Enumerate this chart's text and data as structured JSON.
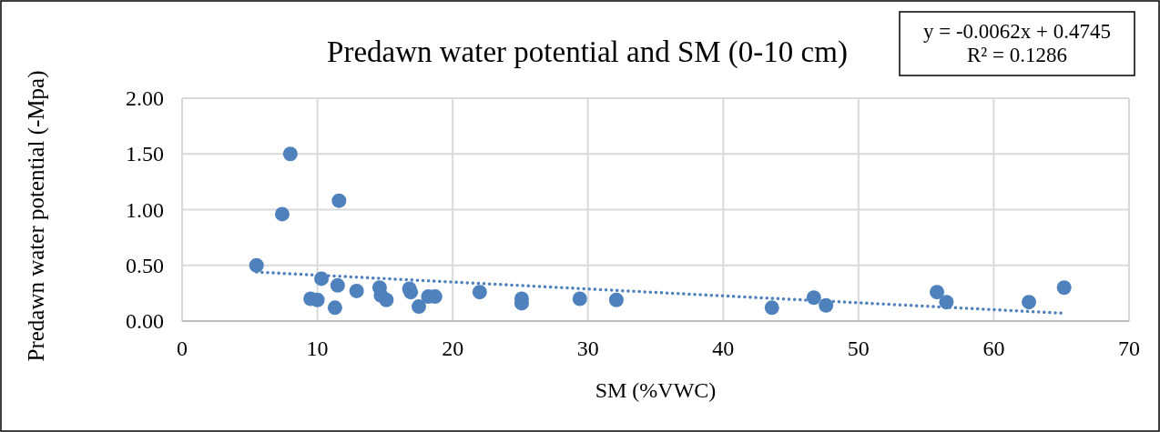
{
  "chart_data": {
    "type": "scatter",
    "title": "Predawn water potential and SM (0-10 cm)",
    "xlabel": "SM (%VWC)",
    "ylabel": "Predawn water potential (-Mpa)",
    "annotations": [
      "y = -0.0062x + 0.4745\nR² = 0.1286"
    ],
    "xlim": [
      0,
      70
    ],
    "xticks": [
      0,
      10,
      20,
      30,
      40,
      50,
      60,
      70
    ],
    "ylim": [
      0,
      2
    ],
    "yticks": [
      {
        "value": 0,
        "label": "0.00"
      },
      {
        "value": 0.5,
        "label": "0.50"
      },
      {
        "value": 1,
        "label": "1.00"
      },
      {
        "value": 1.5,
        "label": "1.50"
      },
      {
        "value": 2,
        "label": "2.00"
      }
    ],
    "grid": true,
    "series": [
      {
        "marker": "circle",
        "color": "#4f81bd",
        "x": [
          5.5,
          7.4,
          8.0,
          9.5,
          10.0,
          10.3,
          11.3,
          11.5,
          11.6,
          12.9,
          14.6,
          14.7,
          15.1,
          16.8,
          16.9,
          17.5,
          18.2,
          18.7,
          22.0,
          25.1,
          25.1,
          29.4,
          32.1,
          43.6,
          46.7,
          47.6,
          55.8,
          56.5,
          62.6,
          65.2
        ],
        "values": [
          0.5,
          0.96,
          1.5,
          0.2,
          0.19,
          0.38,
          0.12,
          0.32,
          1.08,
          0.27,
          0.3,
          0.23,
          0.19,
          0.29,
          0.26,
          0.13,
          0.22,
          0.22,
          0.26,
          0.2,
          0.16,
          0.2,
          0.19,
          0.12,
          0.21,
          0.14,
          0.26,
          0.17,
          0.17,
          0.3
        ]
      },
      {
        "type": "line",
        "line_style": "dotted",
        "color": "#4f81bd",
        "x": [
          5.5,
          65.2
        ],
        "values": [
          0.44,
          0.07
        ]
      }
    ]
  }
}
